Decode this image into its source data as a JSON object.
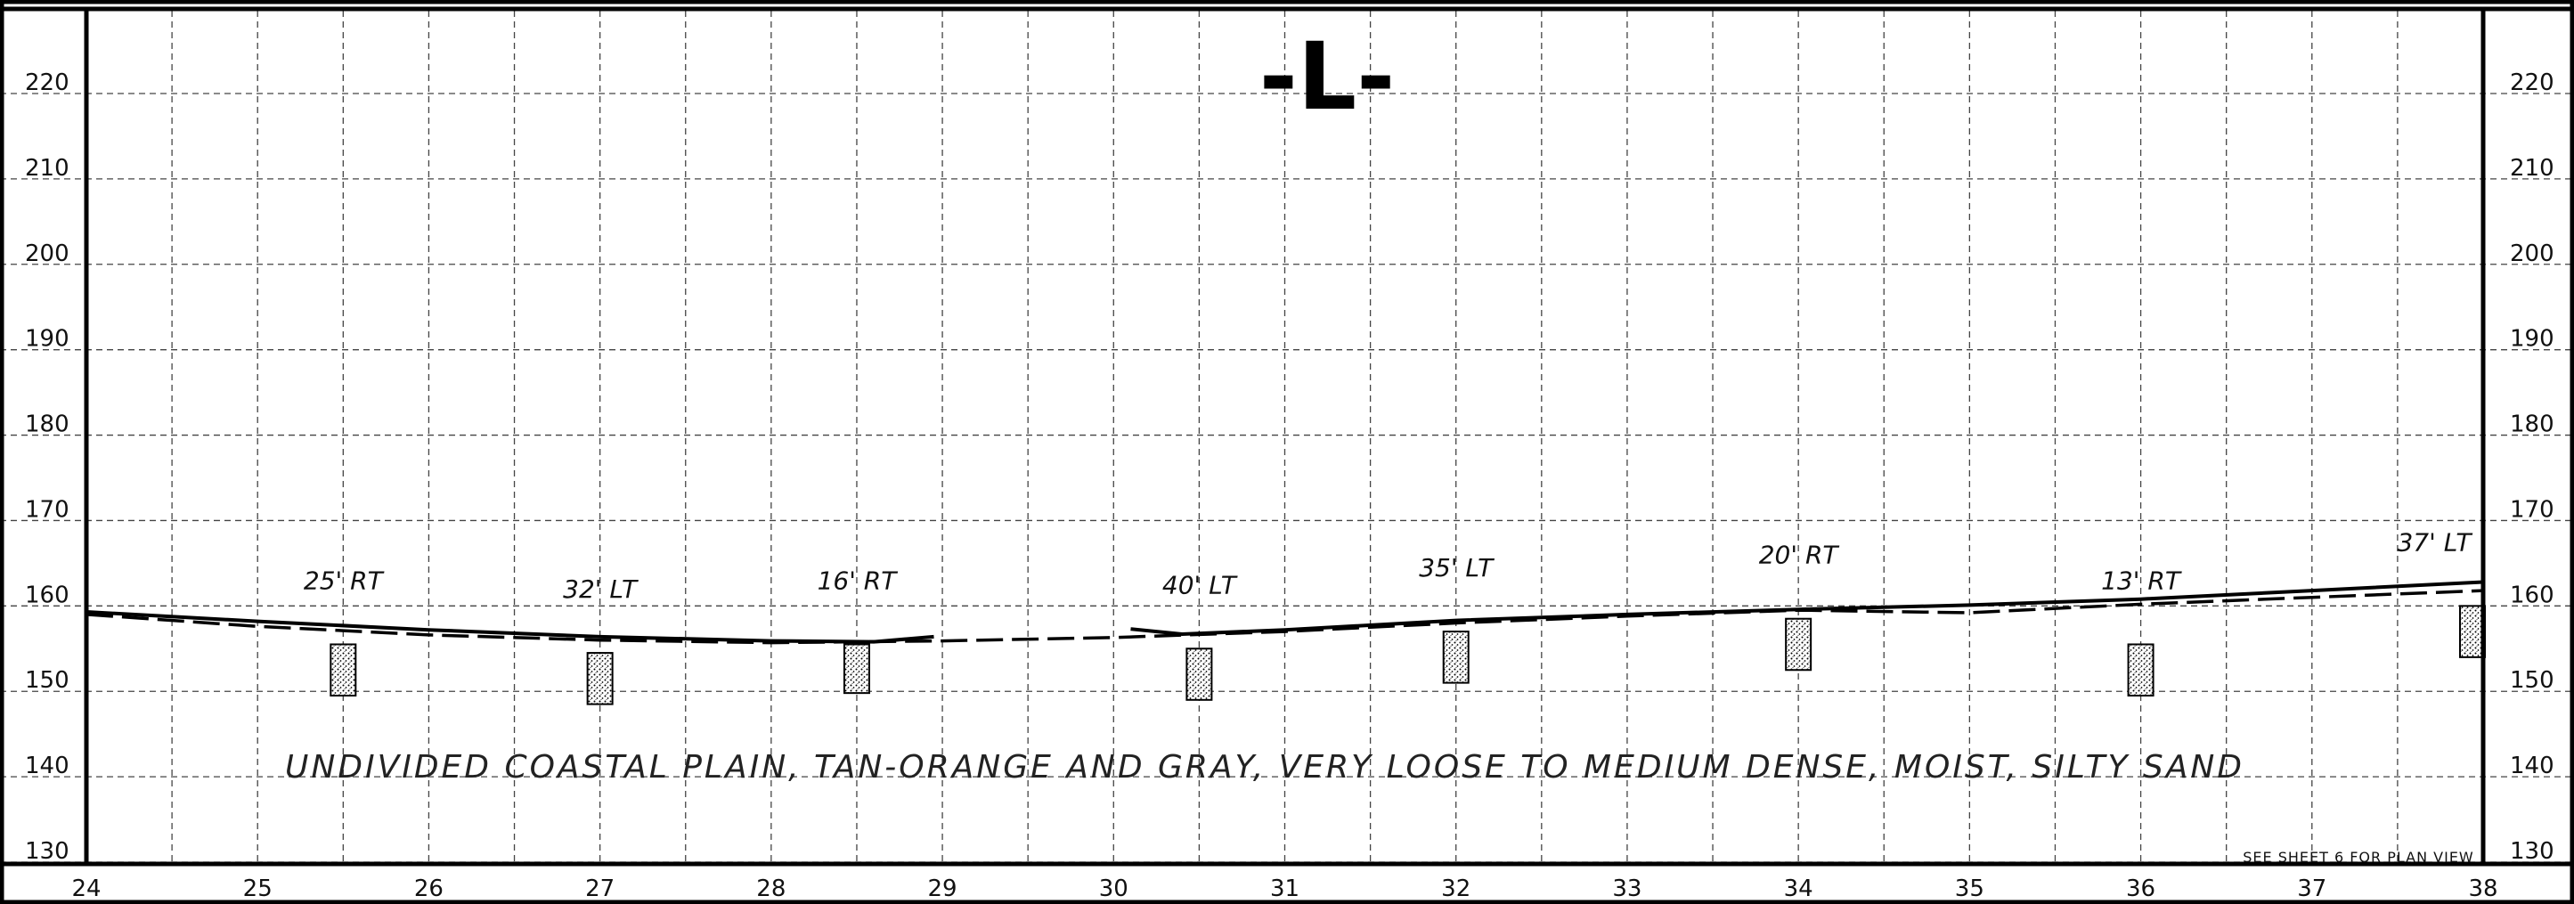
{
  "title": "-L-",
  "elevation_labels": [
    "220",
    "210",
    "200",
    "190",
    "180",
    "170",
    "160",
    "150",
    "140",
    "130"
  ],
  "station_labels": [
    "24",
    "25",
    "26",
    "27",
    "28",
    "29",
    "30",
    "31",
    "32",
    "33",
    "34",
    "35",
    "36",
    "37",
    "38"
  ],
  "borings": [
    {
      "label": "25' RT",
      "station": 25.5,
      "top": 155.5,
      "bottom": 149.5
    },
    {
      "label": "32' LT",
      "station": 27.0,
      "top": 154.5,
      "bottom": 148.5
    },
    {
      "label": "16' RT",
      "station": 28.5,
      "top": 155.5,
      "bottom": 149.8
    },
    {
      "label": "40' LT",
      "station": 30.5,
      "top": 155.0,
      "bottom": 149.0
    },
    {
      "label": "35' LT",
      "station": 32.0,
      "top": 157.0,
      "bottom": 151.0
    },
    {
      "label": "20' RT",
      "station": 34.0,
      "top": 158.5,
      "bottom": 152.5
    },
    {
      "label": "13' RT",
      "station": 36.0,
      "top": 155.5,
      "bottom": 149.5
    },
    {
      "label": "37' LT",
      "station": 38.0,
      "top": 160.0,
      "bottom": 154.0
    }
  ],
  "existing_ground": [
    {
      "station": 24.0,
      "elev": 159.3
    },
    {
      "station": 25.0,
      "elev": 158.2
    },
    {
      "station": 26.0,
      "elev": 157.2
    },
    {
      "station": 27.0,
      "elev": 156.4
    },
    {
      "station": 28.0,
      "elev": 155.9
    },
    {
      "station": 28.6,
      "elev": 155.8
    },
    {
      "station": 28.95,
      "elev": 156.4
    }
  ],
  "existing_ground_2": [
    {
      "station": 30.1,
      "elev": 157.3
    },
    {
      "station": 30.4,
      "elev": 156.7
    },
    {
      "station": 31.0,
      "elev": 157.2
    },
    {
      "station": 32.0,
      "elev": 158.3
    },
    {
      "station": 33.0,
      "elev": 159.0
    },
    {
      "station": 34.0,
      "elev": 159.6
    },
    {
      "station": 35.0,
      "elev": 160.1
    },
    {
      "station": 36.0,
      "elev": 160.8
    },
    {
      "station": 37.0,
      "elev": 161.8
    },
    {
      "station": 38.0,
      "elev": 162.8
    }
  ],
  "proposed_profile": [
    {
      "station": 24.0,
      "elev": 159.0
    },
    {
      "station": 25.0,
      "elev": 157.6
    },
    {
      "station": 26.0,
      "elev": 156.6
    },
    {
      "station": 27.0,
      "elev": 156.0
    },
    {
      "station": 28.0,
      "elev": 155.7
    },
    {
      "station": 29.0,
      "elev": 155.9
    },
    {
      "station": 30.0,
      "elev": 156.3
    },
    {
      "station": 31.0,
      "elev": 157.0
    },
    {
      "station": 32.0,
      "elev": 158.0
    },
    {
      "station": 33.0,
      "elev": 158.8
    },
    {
      "station": 34.0,
      "elev": 159.5
    },
    {
      "station": 35.0,
      "elev": 159.2
    },
    {
      "station": 36.0,
      "elev": 160.2
    },
    {
      "station": 37.0,
      "elev": 161.0
    },
    {
      "station": 38.0,
      "elev": 161.8
    }
  ],
  "soil_description": "UNDIVIDED COASTAL PLAIN, TAN-ORANGE AND GRAY, VERY LOOSE TO MEDIUM DENSE, MOIST, SILTY SAND",
  "sheet_note": "SEE SHEET 6 FOR PLAN VIEW"
}
